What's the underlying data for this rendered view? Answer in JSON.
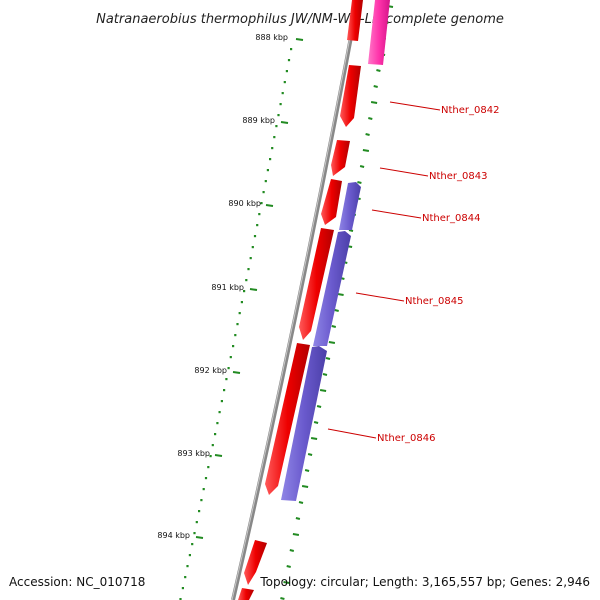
{
  "title": "Natranaerobius thermophilus JW/NM-WN-LF, complete genome",
  "ticks": [
    "888 kbp",
    "889 kbp",
    "890 kbp",
    "891 kbp",
    "892 kbp",
    "893 kbp",
    "894 kbp"
  ],
  "genes": [
    "Nther_0842",
    "Nther_0843",
    "Nther_0844",
    "Nther_0845",
    "Nther_0846"
  ],
  "footer": {
    "accession": "Accession: NC_010718",
    "topology": "Topology: circular; Length: 3,165,557 bp; Genes: 2,946"
  },
  "colors": {
    "forward_cds": "#ee0000",
    "reverse_cds": "#6a5acd",
    "rna": "#ff33aa",
    "backbone": "#888888",
    "gc_ticks": "#228b22",
    "label": "#cc0000"
  }
}
